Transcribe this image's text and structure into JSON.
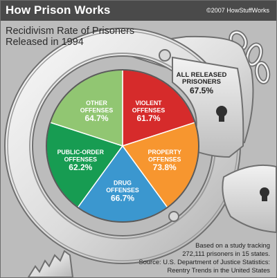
{
  "header": {
    "title": "How Prison Works",
    "copyright": "©2007 HowStuffWorks"
  },
  "subtitle": [
    "Recidivism Rate of Prisoners",
    "Released in 1994"
  ],
  "overall": {
    "label_lines": [
      "ALL RELEASED",
      "PRISONERS"
    ],
    "value": 67.5,
    "value_text": "67.5%"
  },
  "chart_data": {
    "type": "pie",
    "title": "Recidivism Rate of Prisoners Released in 1994",
    "slices": [
      {
        "label": "VIOLENT OFFENSES",
        "label_lines": [
          "VIOLENT",
          "OFFENSES"
        ],
        "value": 61.7,
        "value_text": "61.7%",
        "color": "#d62b2b"
      },
      {
        "label": "PROPERTY OFFENSES",
        "label_lines": [
          "PROPERTY",
          "OFFENSES"
        ],
        "value": 73.8,
        "value_text": "73.8%",
        "color": "#f7962f"
      },
      {
        "label": "DRUG OFFENSES",
        "label_lines": [
          "DRUG",
          "OFFENSES"
        ],
        "value": 66.7,
        "value_text": "66.7%",
        "color": "#3b97cf"
      },
      {
        "label": "PUBLIC-ORDER OFFENSES",
        "label_lines": [
          "PUBLIC-ORDER",
          "OFFENSES"
        ],
        "value": 62.2,
        "value_text": "62.2%",
        "color": "#179c52"
      },
      {
        "label": "OTHER OFFENSES",
        "label_lines": [
          "OTHER",
          "OFFENSES"
        ],
        "value": 64.7,
        "value_text": "64.7%",
        "color": "#91c672"
      }
    ],
    "note": "The five wedges are drawn with equal size; the percentages are printed as labels."
  },
  "source": {
    "lines": [
      "Based on a study tracking",
      "272,111 prisoners in 15 states.",
      "Source: U.S. Department of Justice Statistics:",
      "Reentry Trends in the United States"
    ]
  },
  "colors": {
    "header_bg": "#4a4a4a",
    "background": "#bcbcbc",
    "metal": "#e6e6e6",
    "metal_dark": "#7a7a7a"
  }
}
